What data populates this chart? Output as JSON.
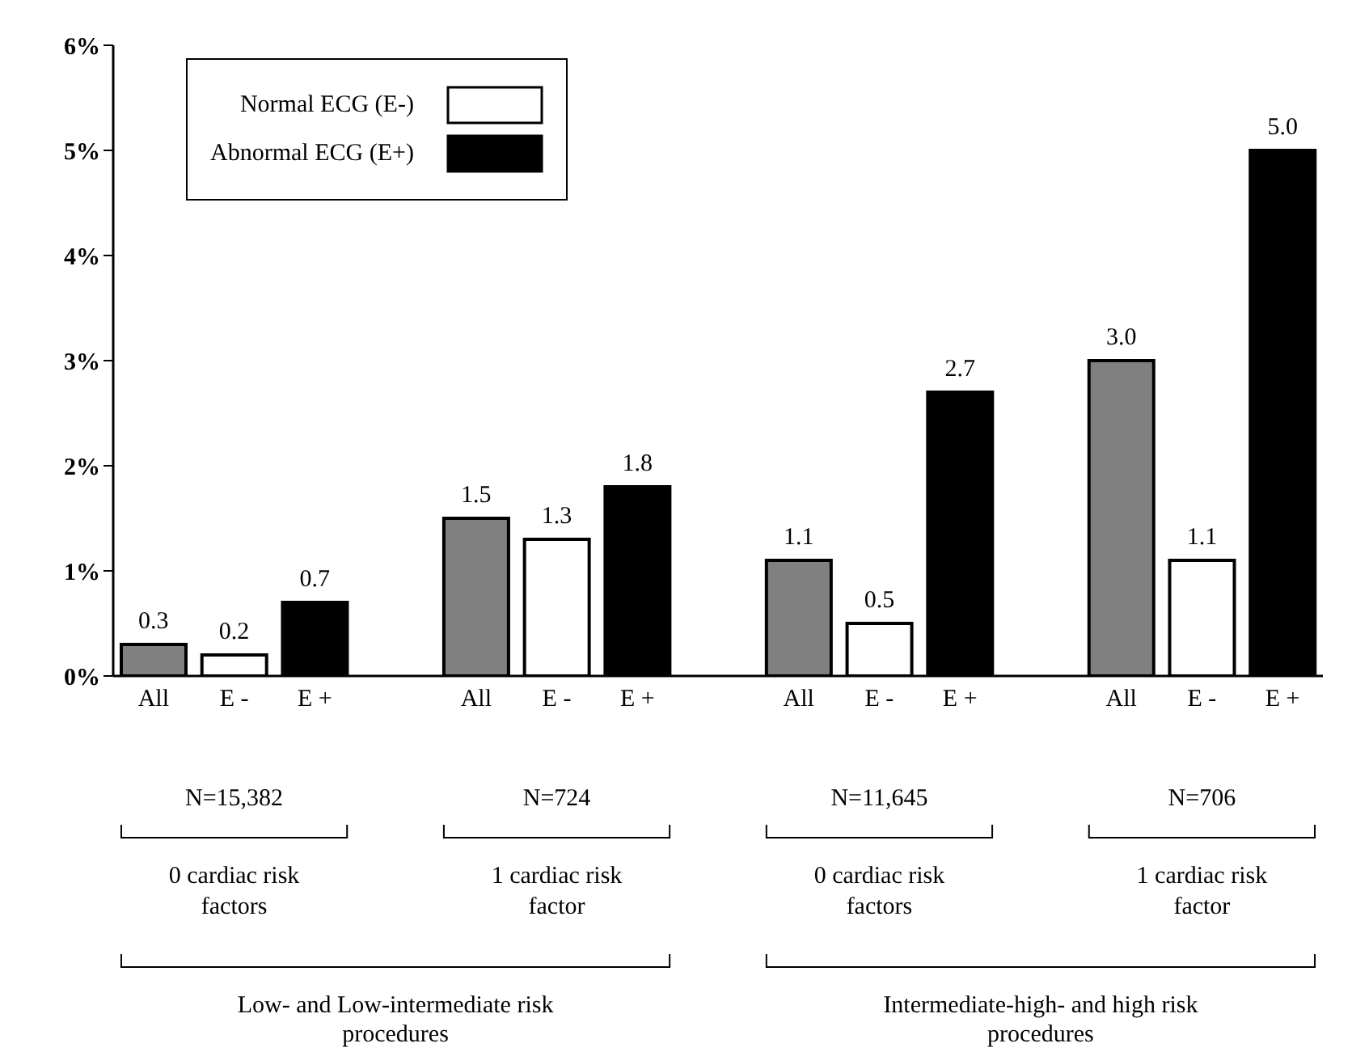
{
  "chart_data": {
    "type": "bar",
    "categories": [
      "All",
      "E -",
      "E +",
      null,
      "All",
      "E -",
      "E +",
      null,
      "All",
      "E -",
      "E +",
      null,
      "All",
      "E -",
      "E +"
    ],
    "series": [
      {
        "color": "#808080",
        "values": [
          0.3,
          null,
          null,
          null,
          1.5,
          null,
          null,
          null,
          1.1,
          null,
          null,
          null,
          3.0,
          null,
          null
        ],
        "value_labels": [
          "0.3",
          null,
          null,
          null,
          "1.5",
          null,
          null,
          null,
          "1.1",
          null,
          null,
          null,
          "3.0",
          null,
          null
        ]
      },
      {
        "name": "Normal ECG (E-)",
        "color": "#ffffff",
        "values": [
          null,
          0.2,
          null,
          null,
          null,
          1.3,
          null,
          null,
          null,
          0.5,
          null,
          null,
          null,
          1.1,
          null
        ],
        "value_labels": [
          null,
          "0.2",
          null,
          null,
          null,
          "1.3",
          null,
          null,
          null,
          "0.5",
          null,
          null,
          null,
          "1.1",
          null
        ]
      },
      {
        "name": "Abnormal ECG (E+)",
        "color": "#000000",
        "values": [
          null,
          null,
          0.7,
          null,
          null,
          null,
          1.8,
          null,
          null,
          null,
          2.7,
          null,
          null,
          null,
          5.0
        ],
        "value_labels": [
          null,
          null,
          "0.7",
          null,
          null,
          null,
          "1.8",
          null,
          null,
          null,
          "2.7",
          null,
          null,
          null,
          "5.0"
        ]
      }
    ],
    "ylim": [
      0,
      6
    ],
    "yticks": [
      {
        "value": 0,
        "label": "0%"
      },
      {
        "value": 1,
        "label": "1%"
      },
      {
        "value": 2,
        "label": "2%"
      },
      {
        "value": 3,
        "label": "3%"
      },
      {
        "value": 4,
        "label": "4%"
      },
      {
        "value": 5,
        "label": "5%"
      },
      {
        "value": 6,
        "label": "6%"
      }
    ],
    "legend": "top left",
    "annotations": [
      "N=15,382",
      "N=724",
      "N=11,645",
      "N=706",
      "0 cardiac risk factors",
      "1 cardiac risk factor",
      "0 cardiac risk factors",
      "1 cardiac risk factor",
      "Low- and Low-intermediate risk procedures",
      "Intermediate-high- and high risk procedures"
    ]
  }
}
